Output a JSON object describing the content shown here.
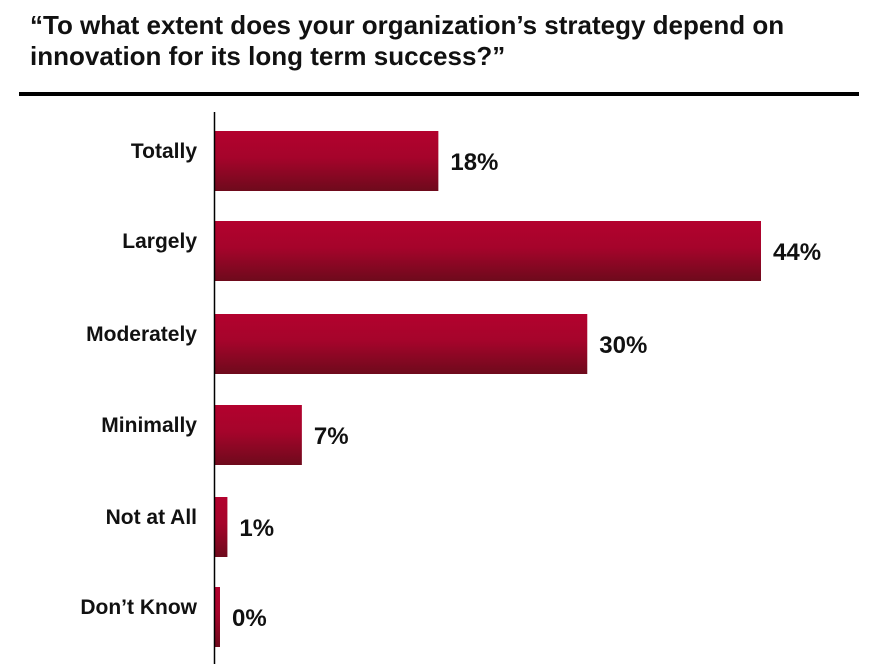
{
  "chart_data": {
    "type": "bar",
    "orientation": "horizontal",
    "title": "“To what extent does your organization’s strategy depend on innovation for its long term success?”",
    "categories": [
      "Totally",
      "Largely",
      "Moderately",
      "Minimally",
      "Not at All",
      "Don’t Know"
    ],
    "values": [
      18,
      44,
      30,
      7,
      1,
      0
    ],
    "value_labels": [
      "18%",
      "44%",
      "30%",
      "7%",
      "1%",
      "0%"
    ],
    "unit": "%",
    "xlim": [
      0,
      44
    ],
    "grid": false,
    "legend": "none",
    "colors": {
      "bar_top": "#b3022e",
      "bar_bottom": "#6e0a1c",
      "axis": "#000000",
      "title_rule": "#000000"
    }
  }
}
